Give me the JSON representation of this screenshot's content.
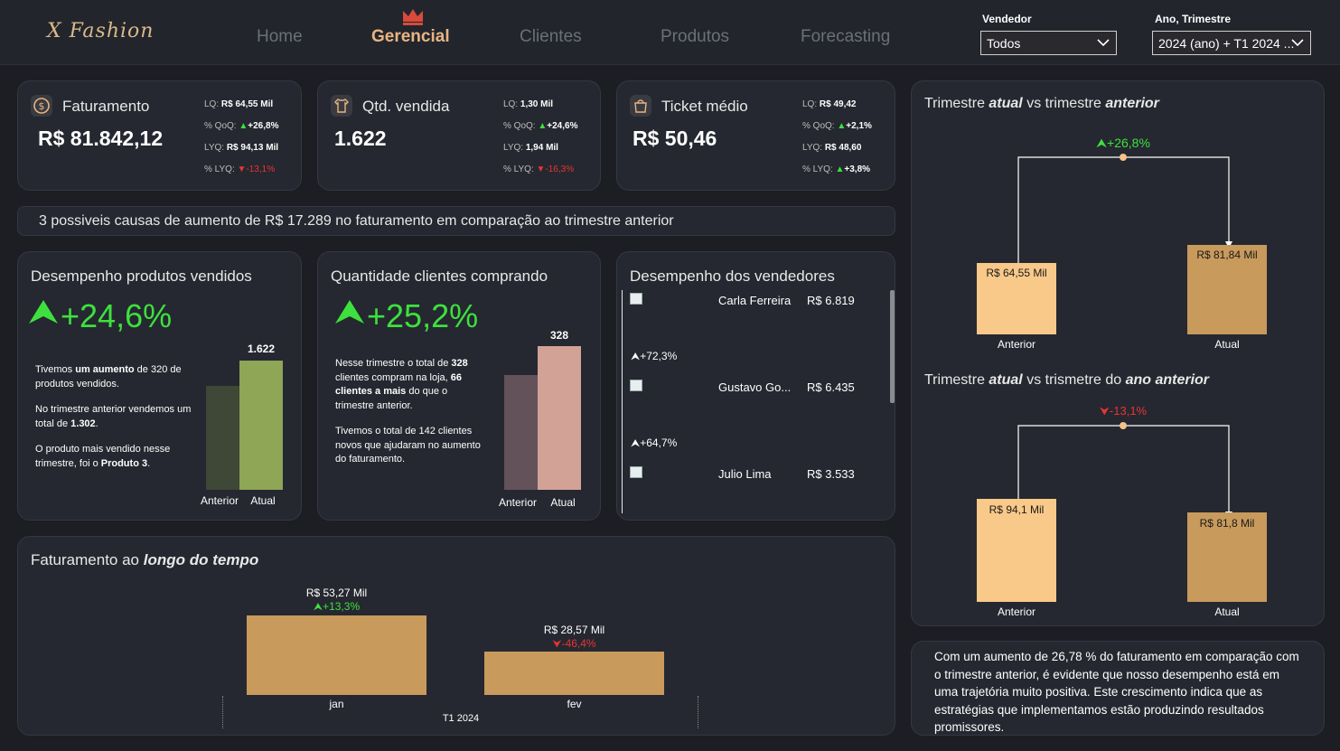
{
  "header": {
    "logo": "X Fashion",
    "nav": [
      "Home",
      "Gerencial",
      "Clientes",
      "Produtos",
      "Forecasting"
    ],
    "active_nav": "Gerencial",
    "filters": {
      "vendedor": {
        "label": "Vendedor",
        "value": "Todos"
      },
      "periodo": {
        "label": "Ano, Trimestre",
        "value": "2024 (ano) + T1 2024 ..."
      }
    }
  },
  "kpis": [
    {
      "title": "Faturamento",
      "icon": "dollar-coin-icon",
      "value": "R$ 81.842,12",
      "lq_label": "LQ:",
      "lq": "R$ 64,55 Mil",
      "qoq_label": "% QoQ:",
      "qoq": "+26,8%",
      "qoq_dir": "up",
      "lyq_label": "LYQ:",
      "lyq": "R$ 94,13 Mil",
      "plyq_label": "% LYQ:",
      "plyq": "-13,1%",
      "plyq_dir": "down"
    },
    {
      "title": "Qtd. vendida",
      "icon": "shirt-icon",
      "value": "1.622",
      "lq_label": "LQ:",
      "lq": "1,30 Mil",
      "qoq_label": "% QoQ:",
      "qoq": "+24,6%",
      "qoq_dir": "up",
      "lyq_label": "LYQ:",
      "lyq": "1,94 Mil",
      "plyq_label": "% LYQ:",
      "plyq": "-16,3%",
      "plyq_dir": "down"
    },
    {
      "title": "Ticket médio",
      "icon": "shopping-bag-icon",
      "value": "R$ 50,46",
      "lq_label": "LQ:",
      "lq": "R$ 49,42",
      "qoq_label": "% QoQ:",
      "qoq": "+2,1%",
      "qoq_dir": "up",
      "lyq_label": "LYQ:",
      "lyq": "R$ 48,60",
      "plyq_label": "% LYQ:",
      "plyq": "+3,8%",
      "plyq_dir": "up"
    }
  ],
  "banner": "3 possiveis causas de aumento de R$ 17.289 no faturamento em comparação ao trimestre anterior",
  "produtos": {
    "title": "Desempenho produtos vendidos",
    "pct": "+24,6%",
    "p1_a": "Tivemos ",
    "p1_b": "um aumento",
    "p1_c": " de 320 de produtos vendidos.",
    "p2_a": "No trimestre anterior vendemos um total de ",
    "p2_b": "1.302",
    "p2_c": ".",
    "p3_a": "O produto mais vendido nesse trimestre, foi o ",
    "p3_b": "Produto 3",
    "p3_c": ".",
    "bar_value_label": "1.622",
    "labels": [
      "Anterior",
      "Atual"
    ],
    "values": [
      1302,
      1622
    ]
  },
  "clientes": {
    "title": "Quantidade clientes comprando",
    "pct": "+25,2%",
    "p1_a": "Nesse trimestre o total de ",
    "p1_b": "328",
    "p1_c": " clientes compram na loja, ",
    "p1_d": "66 clientes a mais",
    "p1_e": " do que o trimestre anterior.",
    "p2": "Tivemos o total de 142 clientes novos que ajudaram no aumento do faturamento.",
    "bar_value_label": "328",
    "labels": [
      "Anterior",
      "Atual"
    ],
    "values": [
      262,
      328
    ]
  },
  "vendedores": {
    "title": "Desempenho dos vendedores",
    "items": [
      {
        "name": "Carla Ferreira",
        "value": "R$ 6.819",
        "pct": "+72,3%"
      },
      {
        "name": "Gustavo Go...",
        "value": "R$ 6.435",
        "pct": "+64,7%"
      },
      {
        "name": "Julio Lima",
        "value": "R$ 3.533",
        "pct": ""
      }
    ]
  },
  "tempo": {
    "title_a": "Faturamento ao ",
    "title_b": "longo do tempo",
    "period": "T1 2024",
    "months": [
      {
        "label": "jan",
        "value_label": "R$ 53,27 Mil",
        "pct": "+13,3%",
        "dir": "up"
      },
      {
        "label": "fev",
        "value_label": "R$ 28,57 Mil",
        "pct": "-46,4%",
        "dir": "down"
      }
    ]
  },
  "trimestre": {
    "title_a": "Trimestre ",
    "title_b": "atual",
    "title_c": " vs trimestre ",
    "title_d": "anterior",
    "pct": "+26,8%",
    "dir": "up",
    "labels": [
      "Anterior",
      "Atual"
    ],
    "value_labels": [
      "R$ 64,55 Mil",
      "R$ 81,84 Mil"
    ]
  },
  "ano": {
    "title_a": "Trimestre ",
    "title_b": "atual",
    "title_c": " vs trismetre do ",
    "title_d": "ano anterior",
    "pct": "-13,1%",
    "dir": "down",
    "labels": [
      "Anterior",
      "Atual"
    ],
    "value_labels": [
      "R$ 94,1 Mil",
      "R$ 81,8 Mil"
    ]
  },
  "summary": "Com um aumento de 26,78 % do faturamento em comparação com o trimestre anterior, é evidente que nosso desempenho está em uma trajetória muito positiva. Este crescimento indica que as estratégias que implementamos estão produzindo resultados promissores.",
  "chart_data": [
    {
      "type": "bar",
      "title": "Desempenho produtos vendidos",
      "categories": [
        "Anterior",
        "Atual"
      ],
      "values": [
        1302,
        1622
      ]
    },
    {
      "type": "bar",
      "title": "Quantidade clientes comprando",
      "categories": [
        "Anterior",
        "Atual"
      ],
      "values": [
        262,
        328
      ]
    },
    {
      "type": "bar",
      "title": "Faturamento ao longo do tempo",
      "xlabel": "T1 2024",
      "categories": [
        "jan",
        "fev"
      ],
      "values": [
        53.27,
        28.57
      ]
    },
    {
      "type": "bar",
      "title": "Trimestre atual vs trimestre anterior",
      "categories": [
        "Anterior",
        "Atual"
      ],
      "values": [
        64.55,
        81.84
      ]
    },
    {
      "type": "bar",
      "title": "Trimestre atual vs trismetre do ano anterior",
      "categories": [
        "Anterior",
        "Atual"
      ],
      "values": [
        94.1,
        81.8
      ]
    }
  ],
  "colors": {
    "accent": "#e8b483",
    "up": "#3ee03e",
    "down": "#e83434",
    "bar_gold": "#c89a5c",
    "bar_peach": "#f9c98a"
  }
}
